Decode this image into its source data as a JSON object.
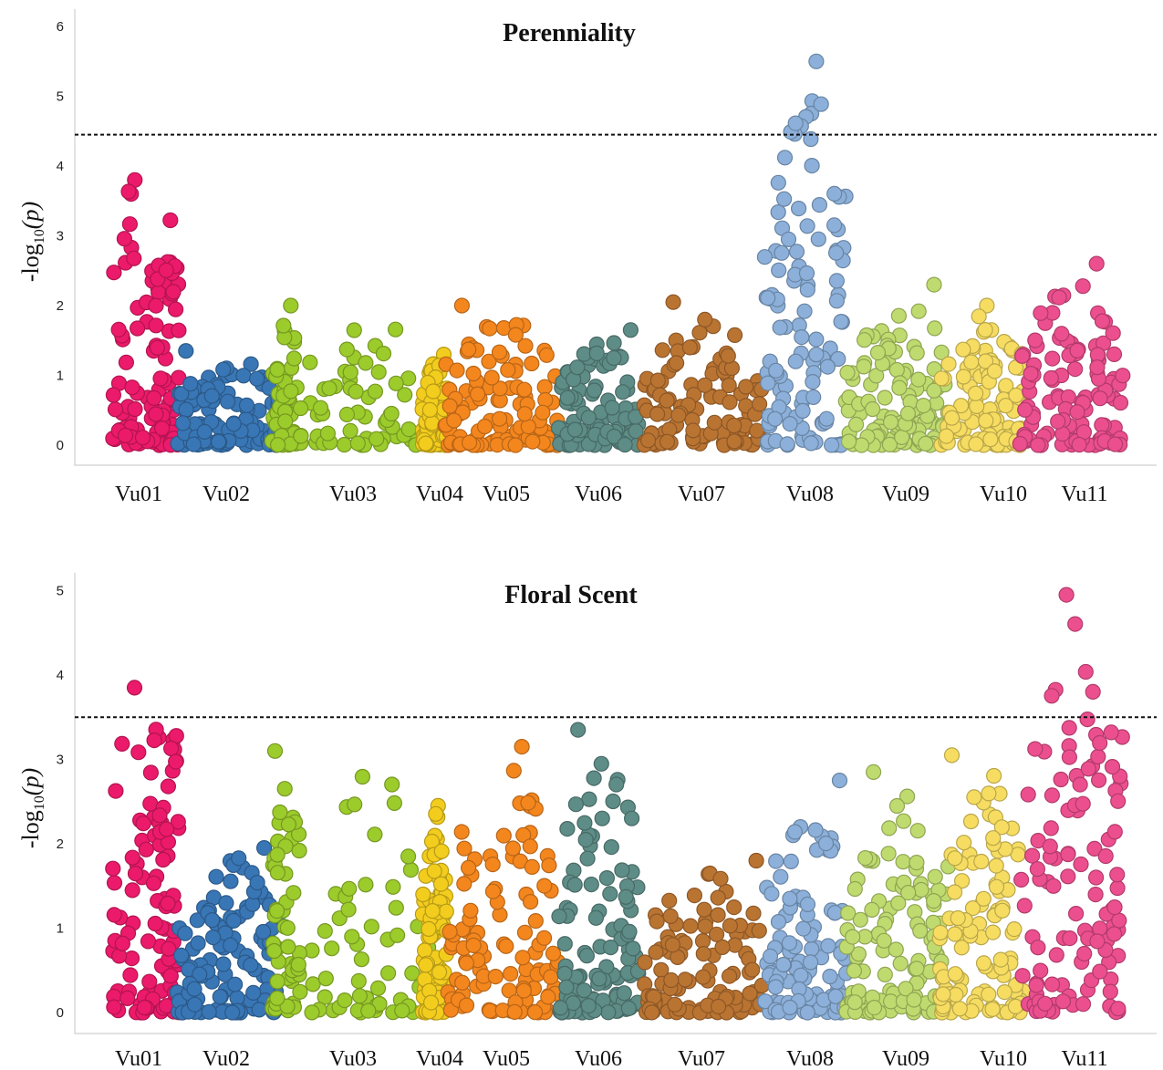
{
  "chromosomes": [
    {
      "name": "Vu01",
      "color": "#ec1a6a"
    },
    {
      "name": "Vu02",
      "color": "#3976b5"
    },
    {
      "name": "Vu03",
      "color": "#9ccb2c"
    },
    {
      "name": "Vu04",
      "color": "#f3cd1e"
    },
    {
      "name": "Vu05",
      "color": "#f4861e"
    },
    {
      "name": "Vu06",
      "color": "#5e8c87"
    },
    {
      "name": "Vu07",
      "color": "#ba7432"
    },
    {
      "name": "Vu08",
      "color": "#8cb0d9"
    },
    {
      "name": "Vu09",
      "color": "#bfdb6f"
    },
    {
      "name": "Vu10",
      "color": "#f6dd62"
    },
    {
      "name": "Vu11",
      "color": "#ec4f8e"
    }
  ],
  "chart_data": [
    {
      "type": "scatter",
      "title": "Perenniality",
      "ylabel": "-log10(p)",
      "ylabel_main": "-log",
      "ylabel_sub": "10",
      "ylabel_end": "(p)",
      "ylim": [
        0,
        6
      ],
      "yticks": [
        "0",
        "1",
        "2",
        "3",
        "4",
        "5",
        "6"
      ],
      "threshold": 4.45,
      "categories": [
        "Vu01",
        "Vu02",
        "Vu03",
        "Vu04",
        "Vu05",
        "Vu06",
        "Vu07",
        "Vu08",
        "Vu09",
        "Vu10",
        "Vu11"
      ],
      "peaks": [
        3.8,
        1.35,
        2.0,
        1.3,
        2.0,
        1.65,
        2.05,
        5.5,
        2.3,
        2.0,
        2.6
      ],
      "grid": false
    },
    {
      "type": "scatter",
      "title": "Floral Scent",
      "ylabel": "-log10(p)",
      "ylabel_main": "-log",
      "ylabel_sub": "10",
      "ylabel_end": "(p)",
      "ylim": [
        0,
        5
      ],
      "yticks": [
        "0",
        "1",
        "2",
        "3",
        "4",
        "5"
      ],
      "threshold": 3.5,
      "categories": [
        "Vu01",
        "Vu02",
        "Vu03",
        "Vu04",
        "Vu05",
        "Vu06",
        "Vu07",
        "Vu08",
        "Vu09",
        "Vu10",
        "Vu11"
      ],
      "peaks": [
        3.85,
        1.95,
        3.1,
        2.45,
        3.15,
        3.35,
        1.8,
        2.75,
        2.85,
        3.05,
        4.95
      ],
      "grid": false
    }
  ]
}
